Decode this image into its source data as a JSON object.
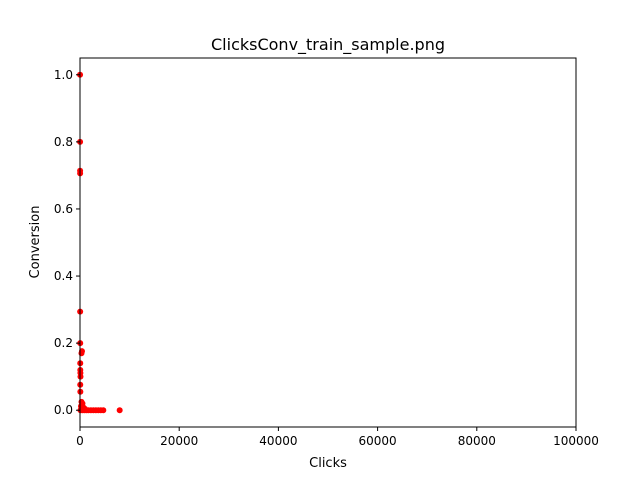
{
  "chart_data": {
    "type": "scatter",
    "title": "ClicksConv_train_sample.png",
    "xlabel": "Clicks",
    "ylabel": "Conversion",
    "xlim": [
      0,
      100000
    ],
    "ylim": [
      -0.05,
      1.05
    ],
    "xticks": [
      0,
      20000,
      40000,
      60000,
      80000,
      100000
    ],
    "yticks": [
      0.0,
      0.2,
      0.4,
      0.6,
      0.8,
      1.0
    ],
    "xtick_labels": [
      "0",
      "20000",
      "40000",
      "60000",
      "80000",
      "100000"
    ],
    "ytick_labels": [
      "0.0",
      "0.2",
      "0.4",
      "0.6",
      "0.8",
      "1.0"
    ],
    "grid": false,
    "marker_color": "#ff0000",
    "points": [
      {
        "x": 10,
        "y": 1.0
      },
      {
        "x": 15,
        "y": 0.8
      },
      {
        "x": 20,
        "y": 0.714
      },
      {
        "x": 25,
        "y": 0.706
      },
      {
        "x": 30,
        "y": 0.294
      },
      {
        "x": 40,
        "y": 0.2
      },
      {
        "x": 400,
        "y": 0.176
      },
      {
        "x": 300,
        "y": 0.17
      },
      {
        "x": 50,
        "y": 0.14
      },
      {
        "x": 60,
        "y": 0.12
      },
      {
        "x": 80,
        "y": 0.111
      },
      {
        "x": 100,
        "y": 0.1
      },
      {
        "x": 50,
        "y": 0.076
      },
      {
        "x": 70,
        "y": 0.055
      },
      {
        "x": 300,
        "y": 0.025
      },
      {
        "x": 500,
        "y": 0.02
      },
      {
        "x": 200,
        "y": 0.012
      },
      {
        "x": 700,
        "y": 0.008
      },
      {
        "x": 1000,
        "y": 0.004
      },
      {
        "x": 100,
        "y": 0.0
      },
      {
        "x": 500,
        "y": 0.0
      },
      {
        "x": 900,
        "y": 0.0
      },
      {
        "x": 1300,
        "y": 0.0
      },
      {
        "x": 1700,
        "y": 0.0
      },
      {
        "x": 2200,
        "y": 0.0
      },
      {
        "x": 2700,
        "y": 0.0
      },
      {
        "x": 3200,
        "y": 0.0
      },
      {
        "x": 3700,
        "y": 0.0
      },
      {
        "x": 4200,
        "y": 0.0
      },
      {
        "x": 4700,
        "y": 0.0
      },
      {
        "x": 8000,
        "y": 0.0
      }
    ]
  }
}
